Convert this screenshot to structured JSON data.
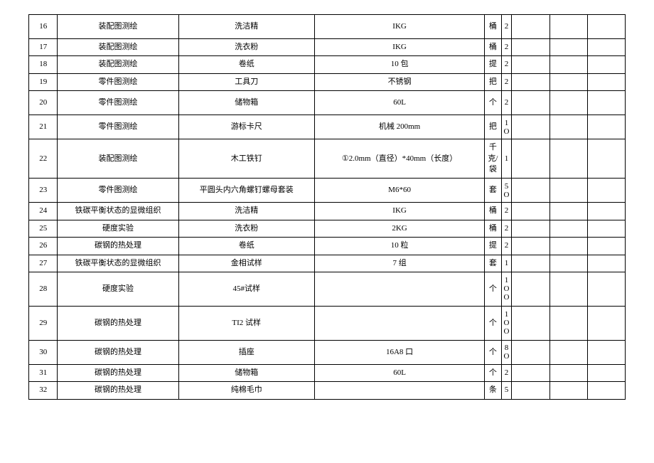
{
  "rows": [
    {
      "idx": "16",
      "cat": "装配图测绘",
      "item": "洗洁精",
      "spec": "IKG",
      "unit": "桶",
      "qty": "2",
      "h": "med"
    },
    {
      "idx": "17",
      "cat": "装配图测绘",
      "item": "洗衣粉",
      "spec": "IKG",
      "unit": "桶",
      "qty": "2",
      "h": "short"
    },
    {
      "idx": "18",
      "cat": "装配图测绘",
      "item": "卷纸",
      "spec": "10 包",
      "unit": "提",
      "qty": "2",
      "h": "short"
    },
    {
      "idx": "19",
      "cat": "零件图测绘",
      "item": "工具刀",
      "spec": "不锈钢",
      "unit": "把",
      "qty": "2",
      "h": "short"
    },
    {
      "idx": "20",
      "cat": "零件图测绘",
      "item": "储物箱",
      "spec": "60L",
      "unit": "个",
      "qty": "2",
      "h": "med"
    },
    {
      "idx": "21",
      "cat": "零件图测绘",
      "item": "游标卡尺",
      "spec": "机械 200mm",
      "unit": "把",
      "qty": "1O",
      "h": "med",
      "stack": true
    },
    {
      "idx": "22",
      "cat": "装配图测绘",
      "item": "木工铁钉",
      "spec": "①2.0mm（直径）*40mm（长度）",
      "unit": "千克/袋",
      "qty": "1",
      "h": "tall"
    },
    {
      "idx": "23",
      "cat": "零件图测绘",
      "item": "平圆头内六角螺钉螺母套装",
      "spec": "M6*60",
      "unit": "套",
      "qty": "5O",
      "h": "med",
      "stack": true
    },
    {
      "idx": "24",
      "cat": "铁碳平衡状态的显微组织",
      "item": "洗洁精",
      "spec": "IKG",
      "unit": "桶",
      "qty": "2",
      "h": "short"
    },
    {
      "idx": "25",
      "cat": "硬度实验",
      "item": "洗衣粉",
      "spec": "2KG",
      "unit": "桶",
      "qty": "2",
      "h": "short"
    },
    {
      "idx": "26",
      "cat": "碳钢的热处理",
      "item": "卷纸",
      "spec": "10 粒",
      "unit": "提",
      "qty": "2",
      "h": "short"
    },
    {
      "idx": "27",
      "cat": "铁碳平衡状态的显微组织",
      "item": "金相试样",
      "spec": "7 组",
      "unit": "套",
      "qty": "1",
      "h": "short"
    },
    {
      "idx": "28",
      "cat": "硬度实验",
      "item": "45#试样",
      "spec": "",
      "unit": "个",
      "qty": "1OO",
      "h": "tall",
      "stack": true
    },
    {
      "idx": "29",
      "cat": "碳钢的热处理",
      "item": "TI2 试样",
      "spec": "",
      "unit": "个",
      "qty": "1OO",
      "h": "tall",
      "stack": true
    },
    {
      "idx": "30",
      "cat": "碳钢的热处理",
      "item": "插座",
      "spec": "16A8 口",
      "unit": "个",
      "qty": "8O",
      "h": "med",
      "stack": true
    },
    {
      "idx": "31",
      "cat": "碳钢的热处理",
      "item": "储物箱",
      "spec": "60L",
      "unit": "个",
      "qty": "2",
      "h": "short"
    },
    {
      "idx": "32",
      "cat": "碳钢的热处理",
      "item": "纯棉毛巾",
      "spec": "",
      "unit": "条",
      "qty": "5",
      "h": "short"
    }
  ]
}
